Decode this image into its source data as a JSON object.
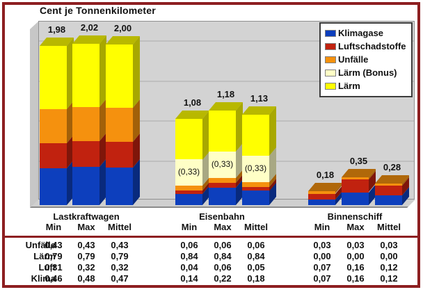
{
  "chart_data": {
    "type": "bar",
    "stacked": true,
    "title": "Cent je Tonnenkilometer",
    "groups": [
      "Lastkraftwagen",
      "Eisenbahn",
      "Binnenschiff"
    ],
    "subcategories": [
      "Min",
      "Max",
      "Mittel"
    ],
    "ylim": [
      0,
      2.25
    ],
    "gridline_step": 0.5,
    "grid": true,
    "legend_position": "top-right",
    "series": [
      {
        "name": "Klimagase",
        "color": "#0D3FBD",
        "values": [
          0.46,
          0.48,
          0.47,
          0.14,
          0.22,
          0.18,
          0.07,
          0.16,
          0.12
        ]
      },
      {
        "name": "Luftschadstoffe",
        "color": "#C1220F",
        "values": [
          0.31,
          0.32,
          0.32,
          0.04,
          0.06,
          0.05,
          0.07,
          0.16,
          0.12
        ]
      },
      {
        "name": "Unfälle",
        "color": "#F5910E",
        "values": [
          0.43,
          0.43,
          0.43,
          0.06,
          0.06,
          0.06,
          0.03,
          0.03,
          0.03
        ]
      },
      {
        "name": "Lärm (Bonus)",
        "color": "#FFFFC6",
        "values": [
          0,
          0,
          0,
          0.33,
          0.33,
          0.33,
          0,
          0,
          0
        ],
        "segment_labels": [
          "",
          "",
          "",
          "(0,33)",
          "(0,33)",
          "(0,33)",
          "",
          "",
          ""
        ]
      },
      {
        "name": "Lärm",
        "color": "#FFFF00",
        "values": [
          0.79,
          0.79,
          0.79,
          0.51,
          0.51,
          0.51,
          0,
          0,
          0
        ]
      }
    ],
    "totals": [
      "1,98",
      "2,02",
      "2,00",
      "1,08",
      "1,18",
      "1,13",
      "0,18",
      "0,35",
      "0,28"
    ]
  },
  "table": {
    "row_labels": [
      "Unfälle",
      "Lärm",
      "Luft",
      "Klima"
    ],
    "rows": [
      [
        "0,43",
        "0,43",
        "0,43",
        "0,06",
        "0,06",
        "0,06",
        "0,03",
        "0,03",
        "0,03"
      ],
      [
        "0,79",
        "0,79",
        "0,79",
        "0,84",
        "0,84",
        "0,84",
        "0,00",
        "0,00",
        "0,00"
      ],
      [
        "0,31",
        "0,32",
        "0,32",
        "0,04",
        "0,06",
        "0,05",
        "0,07",
        "0,16",
        "0,12"
      ],
      [
        "0,46",
        "0,48",
        "0,47",
        "0,14",
        "0,22",
        "0,18",
        "0,07",
        "0,16",
        "0,12"
      ]
    ]
  },
  "colors": {
    "frame_border": "#8D1F21",
    "plot_wall": "#D3D3D3",
    "gridline": "#BFBFBF"
  }
}
